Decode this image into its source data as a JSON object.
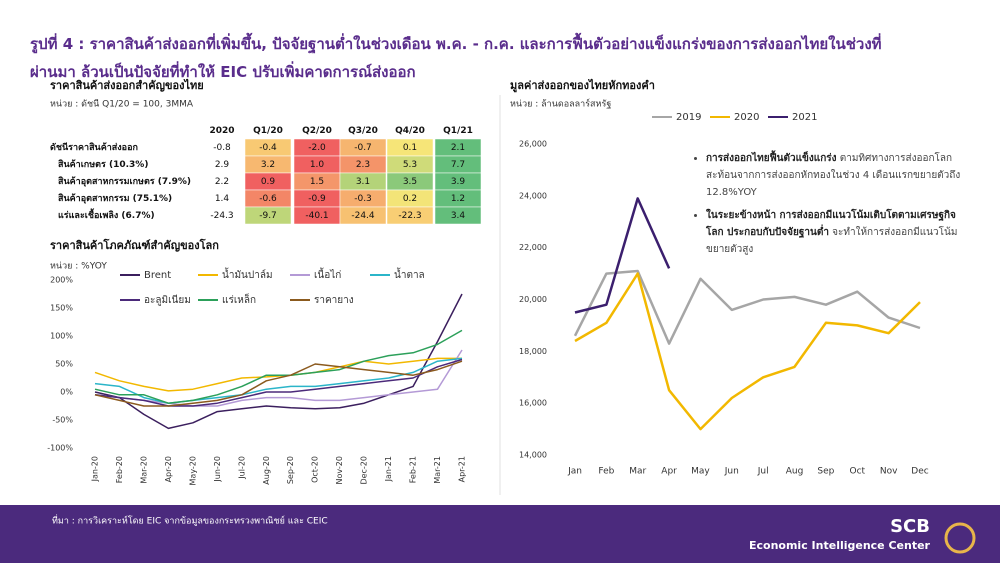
{
  "header": {
    "title_lines": [
      "รูปที่ 4 : ราคาสินค้าส่งออกที่เพิ่มขึ้น, ปัจจัยฐานต่ำในช่วงเดือน พ.ค. - ก.ค. และการฟื้นตัวอย่างแข็งแกร่งของการส่งออกไทยในช่วงที่",
      "ผ่านมา ล้วนเป็นปัจจัยที่ทำให้ EIC ปรับเพิ่มคาดการณ์ส่งออก"
    ]
  },
  "table": {
    "title": "ราคาสินค้าส่งออกสำคัญของไทย",
    "unit": "หน่วย : ดัชนี Q1/20 = 100, 3MMA",
    "columns": [
      "2020",
      "Q1/20",
      "Q2/20",
      "Q3/20",
      "Q4/20",
      "Q1/21"
    ],
    "rows": [
      {
        "label": "ดัชนีราคาสินค้าส่งออก",
        "cells": [
          "-0.8",
          "-0.4",
          "-2.0",
          "-0.7",
          "0.1",
          "2.1"
        ]
      },
      {
        "label": "สินค้าเกษตร (10.3%)",
        "cells": [
          "2.9",
          "3.2",
          "1.0",
          "2.3",
          "5.3",
          "7.7"
        ]
      },
      {
        "label": "สินค้าอุตสาหกรรมเกษตร (7.9%)",
        "cells": [
          "2.2",
          "0.9",
          "1.5",
          "3.1",
          "3.5",
          "3.9"
        ]
      },
      {
        "label": "สินค้าอุตสาหกรรม (75.1%)",
        "cells": [
          "1.4",
          "-0.6",
          "-0.9",
          "-0.3",
          "0.2",
          "1.2"
        ]
      },
      {
        "label": "แร่และเชื้อเพลิง (6.7%)",
        "cells": [
          "-24.3",
          "-9.7",
          "-40.1",
          "-24.4",
          "-22.3",
          "3.4"
        ]
      }
    ]
  },
  "chart_data": [
    {
      "type": "line",
      "title": "ราคาสินค้าโภคภัณฑ์สำคัญของโลก",
      "unit": "หน่วย : %YOY",
      "categories": [
        "Jan-20",
        "Feb-20",
        "Mar-20",
        "Apr-20",
        "May-20",
        "Jun-20",
        "Jul-20",
        "Aug-20",
        "Sep-20",
        "Oct-20",
        "Nov-20",
        "Dec-20",
        "Jan-21",
        "Feb-21",
        "Mar-21",
        "Apr-21"
      ],
      "ylim": [
        -100,
        200
      ],
      "yticks": [
        {
          "value": -100,
          "label": "-100%"
        },
        {
          "value": -50,
          "label": "-50%"
        },
        {
          "value": 0,
          "label": "0%"
        },
        {
          "value": 50,
          "label": "50%"
        },
        {
          "value": 100,
          "label": "100%"
        },
        {
          "value": 150,
          "label": "150%"
        },
        {
          "value": 200,
          "label": "200%"
        }
      ],
      "grid": false,
      "series": [
        {
          "name": "Brent",
          "color": "#3b1f5e",
          "values": [
            0,
            -10,
            -40,
            -65,
            -55,
            -35,
            -30,
            -25,
            -28,
            -30,
            -28,
            -20,
            -5,
            10,
            90,
            175
          ]
        },
        {
          "name": "น้ำมันปาล์ม",
          "color": "#f2b800",
          "values": [
            35,
            20,
            10,
            2,
            5,
            15,
            25,
            27,
            30,
            35,
            45,
            55,
            50,
            55,
            60,
            60
          ]
        },
        {
          "name": "เนื้อไก่",
          "color": "#b49ad6",
          "values": [
            -5,
            -10,
            -15,
            -20,
            -25,
            -25,
            -15,
            -10,
            -10,
            -15,
            -15,
            -10,
            -5,
            0,
            5,
            75
          ]
        },
        {
          "name": "น้ำตาล",
          "color": "#2bb5c9",
          "values": [
            15,
            10,
            -10,
            -20,
            -15,
            -10,
            -5,
            5,
            10,
            10,
            15,
            20,
            25,
            35,
            55,
            60
          ]
        },
        {
          "name": "อะลูมิเนียม",
          "color": "#4b2a7a",
          "values": [
            -5,
            -10,
            -15,
            -25,
            -25,
            -20,
            -10,
            0,
            0,
            5,
            10,
            15,
            20,
            25,
            45,
            58
          ]
        },
        {
          "name": "แร่เหล็ก",
          "color": "#2ca05a",
          "values": [
            5,
            -5,
            -5,
            -20,
            -15,
            -5,
            10,
            30,
            30,
            35,
            40,
            55,
            65,
            70,
            85,
            110
          ]
        },
        {
          "name": "ราคายาง",
          "color": "#8b5a1e",
          "values": [
            -5,
            -15,
            -25,
            -25,
            -20,
            -15,
            -5,
            20,
            30,
            50,
            45,
            40,
            35,
            30,
            40,
            55
          ]
        }
      ]
    },
    {
      "type": "line",
      "title": "มูลค่าส่งออกของไทยหักทองคำ",
      "unit": "หน่วย : ล้านดอลลาร์สหรัฐ",
      "categories": [
        "Jan",
        "Feb",
        "Mar",
        "Apr",
        "May",
        "Jun",
        "Jul",
        "Aug",
        "Sep",
        "Oct",
        "Nov",
        "Dec"
      ],
      "ylim": [
        14000,
        26000
      ],
      "yticks": [
        {
          "value": 14000,
          "label": "14,000"
        },
        {
          "value": 16000,
          "label": "16,000"
        },
        {
          "value": 18000,
          "label": "18,000"
        },
        {
          "value": 20000,
          "label": "20,000"
        },
        {
          "value": 22000,
          "label": "22,000"
        },
        {
          "value": 24000,
          "label": "24,000"
        },
        {
          "value": 26000,
          "label": "26,000"
        }
      ],
      "grid": false,
      "series": [
        {
          "name": "2019",
          "color": "#a6a6a6",
          "values": [
            18600,
            21000,
            21100,
            18300,
            20800,
            19600,
            20000,
            20100,
            19800,
            20300,
            19300,
            18900
          ]
        },
        {
          "name": "2020",
          "color": "#f2b800",
          "values": [
            18400,
            19100,
            21000,
            16500,
            15000,
            16200,
            17000,
            17400,
            19100,
            19000,
            18700,
            19900
          ]
        },
        {
          "name": "2021",
          "color": "#3b1f6e",
          "values": [
            19500,
            19800,
            23900,
            21200,
            null,
            null,
            null,
            null,
            null,
            null,
            null,
            null
          ]
        }
      ],
      "annotations": [
        {
          "bold": "การส่งออกไทยฟื้นตัวแข็งแกร่ง",
          "text": "ตามทิศทางการส่งออกโลก สะท้อนจากการส่งออกหักทองในช่วง 4 เดือนแรกขยายตัวถึง 12.8%YOY"
        },
        {
          "bold": "ในระยะข้างหน้า การส่งออกมีแนวโน้มเติบโตตามเศรษฐกิจโลก ประกอบกับปัจจัยฐานต่ำ",
          "text": "จะทำให้การส่งออกมีแนวโน้มขยายตัวสูง"
        }
      ]
    }
  ],
  "footer": {
    "source": "ที่มา : การวิเคราะห์โดย EIC จากข้อมูลของกระทรวงพาณิชย์ และ CEIC",
    "logo": "SCB",
    "org": "Economic Intelligence Center"
  }
}
